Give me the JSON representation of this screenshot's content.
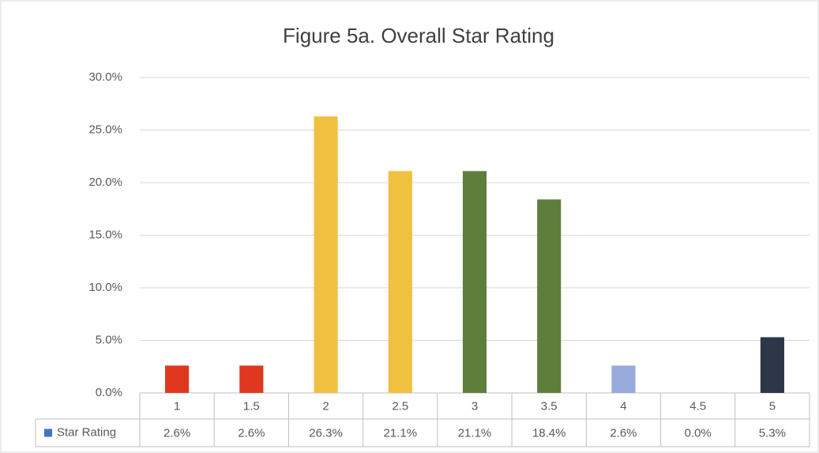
{
  "chart_data": {
    "type": "bar",
    "title": "Figure 5a. Overall Star Rating",
    "categories": [
      "1",
      "1.5",
      "2",
      "2.5",
      "3",
      "3.5",
      "4",
      "4.5",
      "5"
    ],
    "series": [
      {
        "name": "Star Rating",
        "color": "#4472c4",
        "values": [
          2.6,
          2.6,
          26.3,
          21.1,
          21.1,
          18.4,
          2.6,
          0.0,
          5.3
        ],
        "value_labels": [
          "2.6%",
          "2.6%",
          "26.3%",
          "21.1%",
          "21.1%",
          "18.4%",
          "2.6%",
          "0.0%",
          "5.3%"
        ],
        "bar_colors": [
          "#e0371f",
          "#e0371f",
          "#f0c040",
          "#f0c040",
          "#5e7f3b",
          "#5e7f3b",
          "#98aadb",
          "#98aadb",
          "#2d3748"
        ]
      }
    ],
    "ylim": [
      0,
      30
    ],
    "yticks": [
      {
        "value": 0,
        "label": "0.0%"
      },
      {
        "value": 5,
        "label": "5.0%"
      },
      {
        "value": 10,
        "label": "10.0%"
      },
      {
        "value": 15,
        "label": "15.0%"
      },
      {
        "value": 20,
        "label": "20.0%"
      },
      {
        "value": 25,
        "label": "25.0%"
      },
      {
        "value": 30,
        "label": "30.0%"
      }
    ],
    "grid": true
  }
}
